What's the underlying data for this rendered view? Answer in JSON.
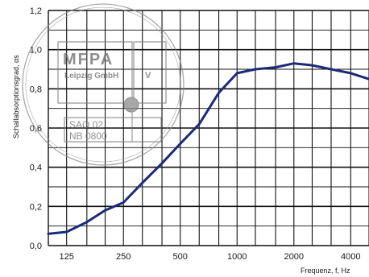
{
  "chart_data": {
    "type": "line",
    "xlabel": "Frequenz, f, Hz",
    "ylabel": "Schallabsorptionsgrad, αs",
    "xscale": "log",
    "xlim": [
      100,
      5000
    ],
    "ylim": [
      0.0,
      1.2
    ],
    "grid": true,
    "x_tick_labels": [
      "125",
      "250",
      "500",
      "1000",
      "2000",
      "4000"
    ],
    "y_tick_labels": [
      "0,0",
      "0,2",
      "0,4",
      "0,6",
      "0,8",
      "1,0",
      "1,2"
    ],
    "series": [
      {
        "color": "#1c2a7a",
        "points": [
          {
            "x": 100,
            "y": 0.06
          },
          {
            "x": 125,
            "y": 0.07
          },
          {
            "x": 160,
            "y": 0.12
          },
          {
            "x": 200,
            "y": 0.18
          },
          {
            "x": 250,
            "y": 0.22
          },
          {
            "x": 315,
            "y": 0.32
          },
          {
            "x": 400,
            "y": 0.42
          },
          {
            "x": 500,
            "y": 0.52
          },
          {
            "x": 630,
            "y": 0.62
          },
          {
            "x": 800,
            "y": 0.78
          },
          {
            "x": 1000,
            "y": 0.88
          },
          {
            "x": 1250,
            "y": 0.9
          },
          {
            "x": 1600,
            "y": 0.91
          },
          {
            "x": 2000,
            "y": 0.93
          },
          {
            "x": 2500,
            "y": 0.92
          },
          {
            "x": 3150,
            "y": 0.9
          },
          {
            "x": 4000,
            "y": 0.88
          },
          {
            "x": 5000,
            "y": 0.85
          }
        ]
      }
    ]
  },
  "stamp": {
    "company": "MFPA",
    "city": "Leipzig GmbH",
    "mark": "V",
    "code_line_1": "SAQ 02",
    "code_line_2": "NB 0800",
    "color": "#7a7a7a"
  }
}
